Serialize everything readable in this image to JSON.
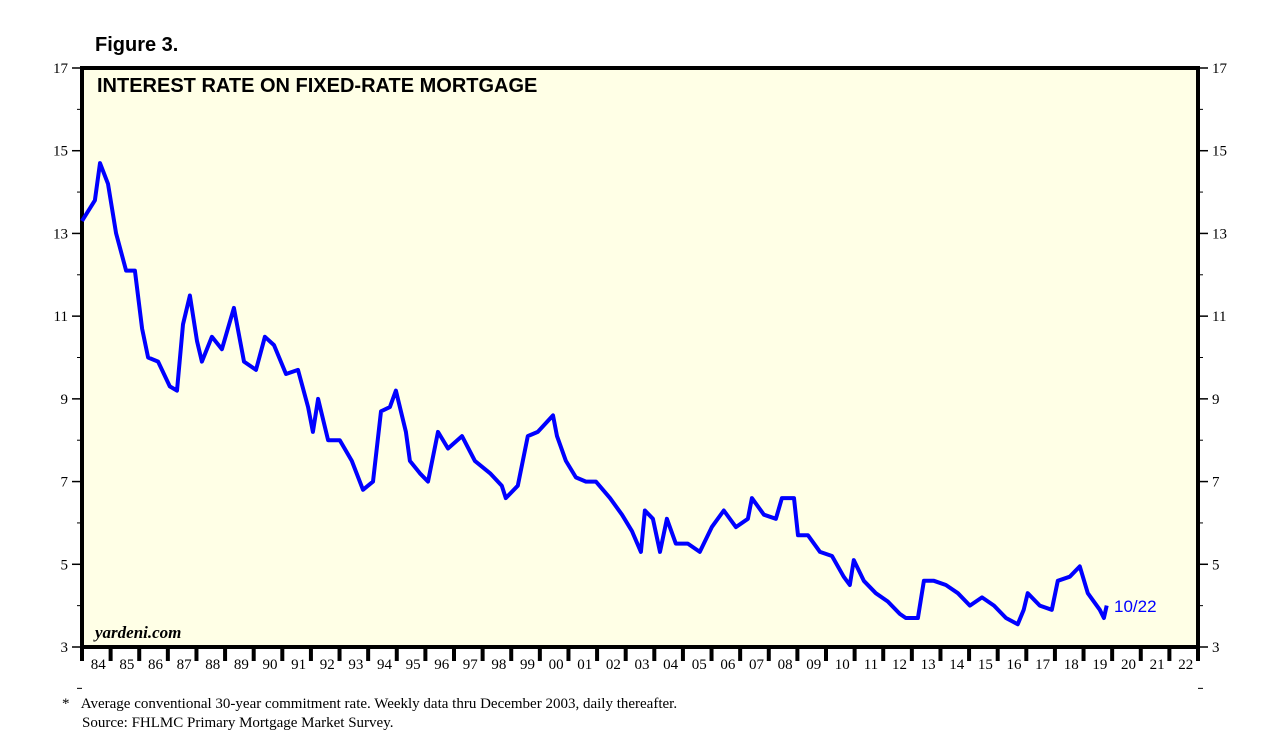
{
  "figure_label": "Figure 3.",
  "chart_data": {
    "type": "line",
    "title": "INTEREST RATE ON FIXED-RATE MORTGAGE",
    "watermark": "yardeni.com",
    "ylim": [
      3,
      17
    ],
    "yticks": [
      3,
      5,
      7,
      9,
      11,
      13,
      15,
      17
    ],
    "xlim": [
      1984,
      2023
    ],
    "xtick_labels": [
      "84",
      "85",
      "86",
      "87",
      "88",
      "89",
      "90",
      "91",
      "92",
      "93",
      "94",
      "95",
      "96",
      "97",
      "98",
      "99",
      "00",
      "01",
      "02",
      "03",
      "04",
      "05",
      "06",
      "07",
      "08",
      "09",
      "10",
      "11",
      "12",
      "13",
      "14",
      "15",
      "16",
      "17",
      "18",
      "19",
      "20",
      "21",
      "22"
    ],
    "grid": false,
    "line_color": "#0000ff",
    "end_label": "10/22",
    "series": [
      {
        "x": [
          1984.0,
          1984.45,
          1984.63,
          1984.91,
          1985.19,
          1985.54,
          1985.85,
          1986.1,
          1986.31,
          1986.66,
          1987.07,
          1987.32,
          1987.53,
          1987.77,
          1988.02,
          1988.19,
          1988.54,
          1988.89,
          1989.31,
          1989.66,
          1990.08,
          1990.39,
          1990.71,
          1991.13,
          1991.55,
          1991.9,
          1992.07,
          1992.25,
          1992.6,
          1993.01,
          1993.43,
          1993.82,
          1994.17,
          1994.45,
          1994.76,
          1994.97,
          1995.32,
          1995.46,
          1995.81,
          1996.09,
          1996.44,
          1996.79,
          1997.28,
          1997.73,
          1998.26,
          1998.67,
          1998.81,
          1999.23,
          1999.58,
          1999.93,
          2000.46,
          2000.6,
          2000.91,
          2001.26,
          2001.61,
          2001.96,
          2002.45,
          2002.87,
          2003.22,
          2003.53,
          2003.67,
          2003.95,
          2004.2,
          2004.44,
          2004.75,
          2005.17,
          2005.59,
          2006.01,
          2006.43,
          2006.85,
          2007.27,
          2007.41,
          2007.83,
          2008.25,
          2008.46,
          2008.88,
          2009.02,
          2009.37,
          2009.79,
          2010.21,
          2010.62,
          2010.83,
          2010.97,
          2011.32,
          2011.74,
          2012.16,
          2012.58,
          2012.79,
          2013.21,
          2013.42,
          2013.77,
          2014.19,
          2014.61,
          2015.03,
          2015.45,
          2015.87,
          2016.29,
          2016.7,
          2016.91,
          2017.05,
          2017.47,
          2017.89,
          2018.1,
          2018.52,
          2018.87,
          2019.15,
          2019.57,
          2019.71,
          2019.81
        ],
        "y": [
          13.3,
          13.8,
          14.7,
          14.2,
          13.0,
          12.1,
          12.1,
          10.7,
          10.0,
          9.9,
          9.3,
          9.2,
          10.8,
          11.5,
          10.4,
          9.9,
          10.5,
          10.2,
          11.2,
          9.9,
          9.7,
          10.5,
          10.3,
          9.6,
          9.7,
          8.8,
          8.2,
          9.0,
          8.0,
          8.0,
          7.5,
          6.8,
          7.0,
          8.7,
          8.8,
          9.2,
          8.2,
          7.5,
          7.2,
          7.0,
          8.2,
          7.8,
          8.1,
          7.5,
          7.2,
          6.9,
          6.6,
          6.9,
          8.1,
          8.2,
          8.6,
          8.1,
          7.5,
          7.1,
          7.0,
          7.0,
          6.6,
          6.2,
          5.8,
          5.3,
          6.3,
          6.1,
          5.3,
          6.1,
          5.5,
          5.5,
          5.3,
          5.9,
          6.3,
          5.9,
          6.1,
          6.6,
          6.2,
          6.1,
          6.6,
          6.6,
          5.7,
          5.7,
          5.3,
          5.2,
          4.7,
          4.5,
          5.1,
          4.6,
          4.3,
          4.1,
          3.8,
          3.7,
          3.7,
          4.6,
          4.6,
          4.5,
          4.3,
          4.0,
          4.2,
          4.0,
          3.7,
          3.55,
          3.9,
          4.3,
          4.0,
          3.9,
          4.6,
          4.7,
          4.95,
          4.3,
          3.9,
          3.7,
          4.0
        ]
      }
    ]
  },
  "footnote": {
    "marker": "*",
    "line1": "Average conventional 30-year commitment rate. Weekly data thru December 2003, daily thereafter.",
    "line2": "Source: FHLMC Primary Mortgage Market Survey."
  }
}
